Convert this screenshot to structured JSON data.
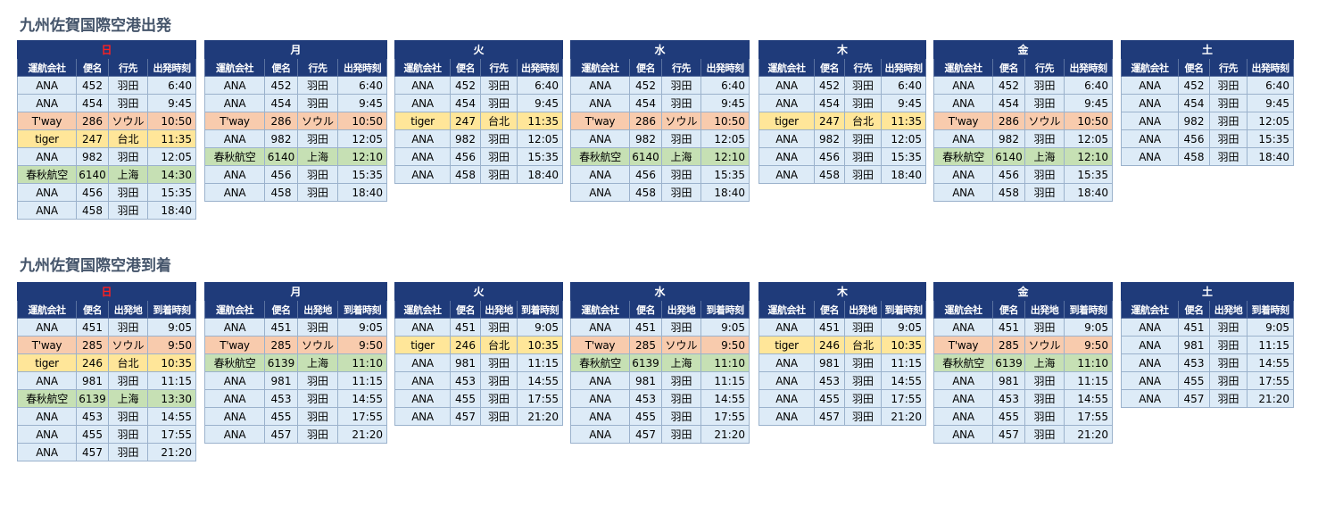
{
  "departures": {
    "title": "九州佐賀国際空港出発",
    "columns": [
      "運航会社",
      "便名",
      "行先",
      "出発時刻"
    ],
    "days": [
      {
        "label": "日",
        "rows": [
          {
            "airline": "ANA",
            "flight": "452",
            "place": "羽田",
            "time": "6:40",
            "type": "ana"
          },
          {
            "airline": "ANA",
            "flight": "454",
            "place": "羽田",
            "time": "9:45",
            "type": "ana"
          },
          {
            "airline": "T'way",
            "flight": "286",
            "place": "ソウル",
            "time": "10:50",
            "type": "tway"
          },
          {
            "airline": "tiger",
            "flight": "247",
            "place": "台北",
            "time": "11:35",
            "type": "tiger"
          },
          {
            "airline": "ANA",
            "flight": "982",
            "place": "羽田",
            "time": "12:05",
            "type": "ana"
          },
          {
            "airline": "春秋航空",
            "flight": "6140",
            "place": "上海",
            "time": "14:30",
            "type": "spring"
          },
          {
            "airline": "ANA",
            "flight": "456",
            "place": "羽田",
            "time": "15:35",
            "type": "ana"
          },
          {
            "airline": "ANA",
            "flight": "458",
            "place": "羽田",
            "time": "18:40",
            "type": "ana"
          }
        ]
      },
      {
        "label": "月",
        "rows": [
          {
            "airline": "ANA",
            "flight": "452",
            "place": "羽田",
            "time": "6:40",
            "type": "ana"
          },
          {
            "airline": "ANA",
            "flight": "454",
            "place": "羽田",
            "time": "9:45",
            "type": "ana"
          },
          {
            "airline": "T'way",
            "flight": "286",
            "place": "ソウル",
            "time": "10:50",
            "type": "tway"
          },
          {
            "airline": "ANA",
            "flight": "982",
            "place": "羽田",
            "time": "12:05",
            "type": "ana"
          },
          {
            "airline": "春秋航空",
            "flight": "6140",
            "place": "上海",
            "time": "12:10",
            "type": "spring"
          },
          {
            "airline": "ANA",
            "flight": "456",
            "place": "羽田",
            "time": "15:35",
            "type": "ana"
          },
          {
            "airline": "ANA",
            "flight": "458",
            "place": "羽田",
            "time": "18:40",
            "type": "ana"
          }
        ]
      },
      {
        "label": "火",
        "rows": [
          {
            "airline": "ANA",
            "flight": "452",
            "place": "羽田",
            "time": "6:40",
            "type": "ana"
          },
          {
            "airline": "ANA",
            "flight": "454",
            "place": "羽田",
            "time": "9:45",
            "type": "ana"
          },
          {
            "airline": "tiger",
            "flight": "247",
            "place": "台北",
            "time": "11:35",
            "type": "tiger"
          },
          {
            "airline": "ANA",
            "flight": "982",
            "place": "羽田",
            "time": "12:05",
            "type": "ana"
          },
          {
            "airline": "ANA",
            "flight": "456",
            "place": "羽田",
            "time": "15:35",
            "type": "ana"
          },
          {
            "airline": "ANA",
            "flight": "458",
            "place": "羽田",
            "time": "18:40",
            "type": "ana"
          }
        ]
      },
      {
        "label": "水",
        "rows": [
          {
            "airline": "ANA",
            "flight": "452",
            "place": "羽田",
            "time": "6:40",
            "type": "ana"
          },
          {
            "airline": "ANA",
            "flight": "454",
            "place": "羽田",
            "time": "9:45",
            "type": "ana"
          },
          {
            "airline": "T'way",
            "flight": "286",
            "place": "ソウル",
            "time": "10:50",
            "type": "tway"
          },
          {
            "airline": "ANA",
            "flight": "982",
            "place": "羽田",
            "time": "12:05",
            "type": "ana"
          },
          {
            "airline": "春秋航空",
            "flight": "6140",
            "place": "上海",
            "time": "12:10",
            "type": "spring"
          },
          {
            "airline": "ANA",
            "flight": "456",
            "place": "羽田",
            "time": "15:35",
            "type": "ana"
          },
          {
            "airline": "ANA",
            "flight": "458",
            "place": "羽田",
            "time": "18:40",
            "type": "ana"
          }
        ]
      },
      {
        "label": "木",
        "rows": [
          {
            "airline": "ANA",
            "flight": "452",
            "place": "羽田",
            "time": "6:40",
            "type": "ana"
          },
          {
            "airline": "ANA",
            "flight": "454",
            "place": "羽田",
            "time": "9:45",
            "type": "ana"
          },
          {
            "airline": "tiger",
            "flight": "247",
            "place": "台北",
            "time": "11:35",
            "type": "tiger"
          },
          {
            "airline": "ANA",
            "flight": "982",
            "place": "羽田",
            "time": "12:05",
            "type": "ana"
          },
          {
            "airline": "ANA",
            "flight": "456",
            "place": "羽田",
            "time": "15:35",
            "type": "ana"
          },
          {
            "airline": "ANA",
            "flight": "458",
            "place": "羽田",
            "time": "18:40",
            "type": "ana"
          }
        ]
      },
      {
        "label": "金",
        "rows": [
          {
            "airline": "ANA",
            "flight": "452",
            "place": "羽田",
            "time": "6:40",
            "type": "ana"
          },
          {
            "airline": "ANA",
            "flight": "454",
            "place": "羽田",
            "time": "9:45",
            "type": "ana"
          },
          {
            "airline": "T'way",
            "flight": "286",
            "place": "ソウル",
            "time": "10:50",
            "type": "tway"
          },
          {
            "airline": "ANA",
            "flight": "982",
            "place": "羽田",
            "time": "12:05",
            "type": "ana"
          },
          {
            "airline": "春秋航空",
            "flight": "6140",
            "place": "上海",
            "time": "12:10",
            "type": "spring"
          },
          {
            "airline": "ANA",
            "flight": "456",
            "place": "羽田",
            "time": "15:35",
            "type": "ana"
          },
          {
            "airline": "ANA",
            "flight": "458",
            "place": "羽田",
            "time": "18:40",
            "type": "ana"
          }
        ]
      },
      {
        "label": "土",
        "rows": [
          {
            "airline": "ANA",
            "flight": "452",
            "place": "羽田",
            "time": "6:40",
            "type": "ana"
          },
          {
            "airline": "ANA",
            "flight": "454",
            "place": "羽田",
            "time": "9:45",
            "type": "ana"
          },
          {
            "airline": "ANA",
            "flight": "982",
            "place": "羽田",
            "time": "12:05",
            "type": "ana"
          },
          {
            "airline": "ANA",
            "flight": "456",
            "place": "羽田",
            "time": "15:35",
            "type": "ana"
          },
          {
            "airline": "ANA",
            "flight": "458",
            "place": "羽田",
            "time": "18:40",
            "type": "ana"
          }
        ]
      }
    ]
  },
  "arrivals": {
    "title": "九州佐賀国際空港到着",
    "columns": [
      "運航会社",
      "便名",
      "出発地",
      "到着時刻"
    ],
    "days": [
      {
        "label": "日",
        "rows": [
          {
            "airline": "ANA",
            "flight": "451",
            "place": "羽田",
            "time": "9:05",
            "type": "ana"
          },
          {
            "airline": "T'way",
            "flight": "285",
            "place": "ソウル",
            "time": "9:50",
            "type": "tway"
          },
          {
            "airline": "tiger",
            "flight": "246",
            "place": "台北",
            "time": "10:35",
            "type": "tiger"
          },
          {
            "airline": "ANA",
            "flight": "981",
            "place": "羽田",
            "time": "11:15",
            "type": "ana"
          },
          {
            "airline": "春秋航空",
            "flight": "6139",
            "place": "上海",
            "time": "13:30",
            "type": "spring"
          },
          {
            "airline": "ANA",
            "flight": "453",
            "place": "羽田",
            "time": "14:55",
            "type": "ana"
          },
          {
            "airline": "ANA",
            "flight": "455",
            "place": "羽田",
            "time": "17:55",
            "type": "ana"
          },
          {
            "airline": "ANA",
            "flight": "457",
            "place": "羽田",
            "time": "21:20",
            "type": "ana"
          }
        ]
      },
      {
        "label": "月",
        "rows": [
          {
            "airline": "ANA",
            "flight": "451",
            "place": "羽田",
            "time": "9:05",
            "type": "ana"
          },
          {
            "airline": "T'way",
            "flight": "285",
            "place": "ソウル",
            "time": "9:50",
            "type": "tway"
          },
          {
            "airline": "春秋航空",
            "flight": "6139",
            "place": "上海",
            "time": "11:10",
            "type": "spring"
          },
          {
            "airline": "ANA",
            "flight": "981",
            "place": "羽田",
            "time": "11:15",
            "type": "ana"
          },
          {
            "airline": "ANA",
            "flight": "453",
            "place": "羽田",
            "time": "14:55",
            "type": "ana"
          },
          {
            "airline": "ANA",
            "flight": "455",
            "place": "羽田",
            "time": "17:55",
            "type": "ana"
          },
          {
            "airline": "ANA",
            "flight": "457",
            "place": "羽田",
            "time": "21:20",
            "type": "ana"
          }
        ]
      },
      {
        "label": "火",
        "rows": [
          {
            "airline": "ANA",
            "flight": "451",
            "place": "羽田",
            "time": "9:05",
            "type": "ana"
          },
          {
            "airline": "tiger",
            "flight": "246",
            "place": "台北",
            "time": "10:35",
            "type": "tiger"
          },
          {
            "airline": "ANA",
            "flight": "981",
            "place": "羽田",
            "time": "11:15",
            "type": "ana"
          },
          {
            "airline": "ANA",
            "flight": "453",
            "place": "羽田",
            "time": "14:55",
            "type": "ana"
          },
          {
            "airline": "ANA",
            "flight": "455",
            "place": "羽田",
            "time": "17:55",
            "type": "ana"
          },
          {
            "airline": "ANA",
            "flight": "457",
            "place": "羽田",
            "time": "21:20",
            "type": "ana"
          }
        ]
      },
      {
        "label": "水",
        "rows": [
          {
            "airline": "ANA",
            "flight": "451",
            "place": "羽田",
            "time": "9:05",
            "type": "ana"
          },
          {
            "airline": "T'way",
            "flight": "285",
            "place": "ソウル",
            "time": "9:50",
            "type": "tway"
          },
          {
            "airline": "春秋航空",
            "flight": "6139",
            "place": "上海",
            "time": "11:10",
            "type": "spring"
          },
          {
            "airline": "ANA",
            "flight": "981",
            "place": "羽田",
            "time": "11:15",
            "type": "ana"
          },
          {
            "airline": "ANA",
            "flight": "453",
            "place": "羽田",
            "time": "14:55",
            "type": "ana"
          },
          {
            "airline": "ANA",
            "flight": "455",
            "place": "羽田",
            "time": "17:55",
            "type": "ana"
          },
          {
            "airline": "ANA",
            "flight": "457",
            "place": "羽田",
            "time": "21:20",
            "type": "ana"
          }
        ]
      },
      {
        "label": "木",
        "rows": [
          {
            "airline": "ANA",
            "flight": "451",
            "place": "羽田",
            "time": "9:05",
            "type": "ana"
          },
          {
            "airline": "tiger",
            "flight": "246",
            "place": "台北",
            "time": "10:35",
            "type": "tiger"
          },
          {
            "airline": "ANA",
            "flight": "981",
            "place": "羽田",
            "time": "11:15",
            "type": "ana"
          },
          {
            "airline": "ANA",
            "flight": "453",
            "place": "羽田",
            "time": "14:55",
            "type": "ana"
          },
          {
            "airline": "ANA",
            "flight": "455",
            "place": "羽田",
            "time": "17:55",
            "type": "ana"
          },
          {
            "airline": "ANA",
            "flight": "457",
            "place": "羽田",
            "time": "21:20",
            "type": "ana"
          }
        ]
      },
      {
        "label": "金",
        "rows": [
          {
            "airline": "ANA",
            "flight": "451",
            "place": "羽田",
            "time": "9:05",
            "type": "ana"
          },
          {
            "airline": "T'way",
            "flight": "285",
            "place": "ソウル",
            "time": "9:50",
            "type": "tway"
          },
          {
            "airline": "春秋航空",
            "flight": "6139",
            "place": "上海",
            "time": "11:10",
            "type": "spring"
          },
          {
            "airline": "ANA",
            "flight": "981",
            "place": "羽田",
            "time": "11:15",
            "type": "ana"
          },
          {
            "airline": "ANA",
            "flight": "453",
            "place": "羽田",
            "time": "14:55",
            "type": "ana"
          },
          {
            "airline": "ANA",
            "flight": "455",
            "place": "羽田",
            "time": "17:55",
            "type": "ana"
          },
          {
            "airline": "ANA",
            "flight": "457",
            "place": "羽田",
            "time": "21:20",
            "type": "ana"
          }
        ]
      },
      {
        "label": "土",
        "rows": [
          {
            "airline": "ANA",
            "flight": "451",
            "place": "羽田",
            "time": "9:05",
            "type": "ana"
          },
          {
            "airline": "ANA",
            "flight": "981",
            "place": "羽田",
            "time": "11:15",
            "type": "ana"
          },
          {
            "airline": "ANA",
            "flight": "453",
            "place": "羽田",
            "time": "14:55",
            "type": "ana"
          },
          {
            "airline": "ANA",
            "flight": "455",
            "place": "羽田",
            "time": "17:55",
            "type": "ana"
          },
          {
            "airline": "ANA",
            "flight": "457",
            "place": "羽田",
            "time": "21:20",
            "type": "ana"
          }
        ]
      }
    ]
  },
  "colors": {
    "header_bg": "#1f3b7a",
    "sunday_text": "#ff2020",
    "ana_row": "#ddebf7",
    "tway_row": "#f8cbad",
    "tiger_row": "#ffe699",
    "spring_row": "#c6e0b4"
  }
}
